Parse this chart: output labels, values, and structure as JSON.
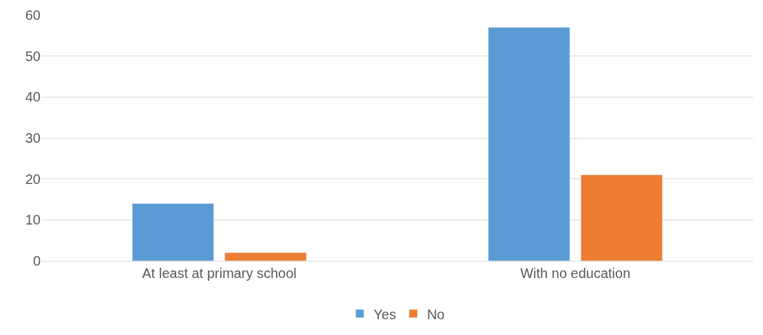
{
  "chart_data": {
    "type": "bar",
    "categories": [
      "At least at primary school",
      "With no education"
    ],
    "series": [
      {
        "name": "Yes",
        "color": "#5b9bd5",
        "values": [
          14,
          57
        ]
      },
      {
        "name": "No",
        "color": "#ed7d31",
        "values": [
          2,
          21
        ]
      }
    ],
    "ylim": [
      0,
      60
    ],
    "yticks": [
      0,
      10,
      20,
      30,
      40,
      50,
      60
    ],
    "grid": "y",
    "legend": "bottom"
  }
}
